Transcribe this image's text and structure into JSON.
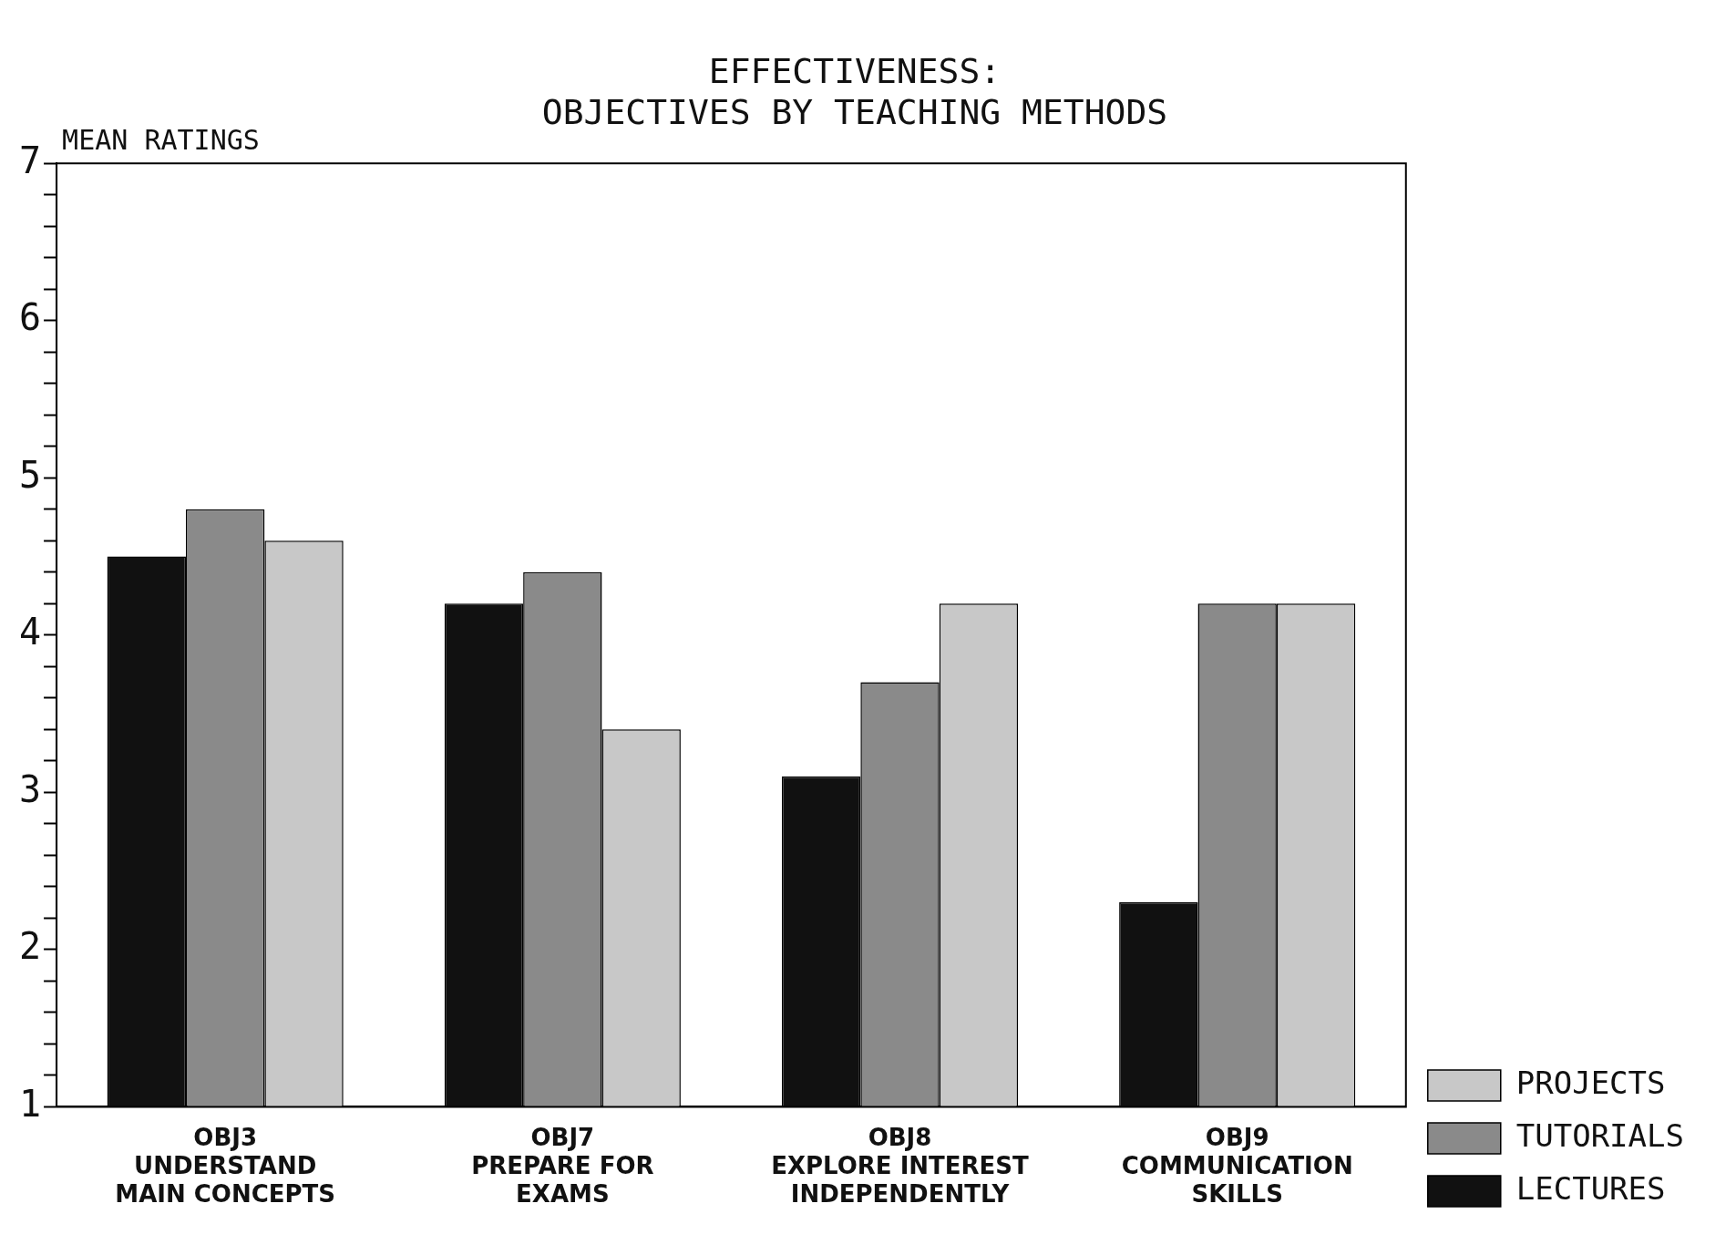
{
  "chart_data": {
    "type": "bar",
    "title": "EFFECTIVENESS:",
    "subtitle": "OBJECTIVES BY TEACHING METHODS",
    "ylabel": "MEAN RATINGS",
    "categories": [
      "OBJ3\nUNDERSTAND\nMAIN CONCEPTS",
      "OBJ7\nPREPARE FOR\nEXAMS",
      "OBJ8\nEXPLORE INTEREST\nINDEPENDENTLY",
      "OBJ9\nCOMMUNICATION\nSKILLS"
    ],
    "series": [
      {
        "name": "LECTURES",
        "color": "#111111",
        "values": [
          4.5,
          4.2,
          3.1,
          2.3
        ]
      },
      {
        "name": "TUTORIALS",
        "color": "#8a8a8a",
        "values": [
          4.8,
          4.4,
          3.7,
          4.2
        ]
      },
      {
        "name": "PROJECTS",
        "color": "#c8c8c8",
        "values": [
          4.6,
          3.4,
          4.2,
          4.2
        ]
      }
    ],
    "ylim": [
      1,
      7
    ],
    "yticks": [
      1,
      {
        "value": 1.2,
        "label": null
      },
      {
        "value": 1.4,
        "label": null
      },
      {
        "value": 1.6,
        "label": null
      },
      {
        "value": 1.8,
        "label": null
      },
      2,
      {
        "value": 2.2,
        "label": null
      },
      {
        "value": 2.4,
        "label": null
      },
      {
        "value": 2.6,
        "label": null
      },
      {
        "value": 2.8,
        "label": null
      },
      3,
      {
        "value": 3.2,
        "label": null
      },
      {
        "value": 3.4,
        "label": null
      },
      {
        "value": 3.6,
        "label": null
      },
      {
        "value": 3.8,
        "label": null
      },
      4,
      {
        "value": 4.2,
        "label": null
      },
      {
        "value": 4.4,
        "label": null
      },
      {
        "value": 4.6,
        "label": null
      },
      {
        "value": 4.8,
        "label": null
      },
      5,
      {
        "value": 5.2,
        "label": null
      },
      {
        "value": 5.4,
        "label": null
      },
      {
        "value": 5.6,
        "label": null
      },
      {
        "value": 5.8,
        "label": null
      },
      6,
      {
        "value": 6.2,
        "label": null
      },
      {
        "value": 6.4,
        "label": null
      },
      {
        "value": 6.6,
        "label": null
      },
      {
        "value": 6.8,
        "label": null
      },
      7
    ],
    "grid": false,
    "legend": "bottom right"
  }
}
